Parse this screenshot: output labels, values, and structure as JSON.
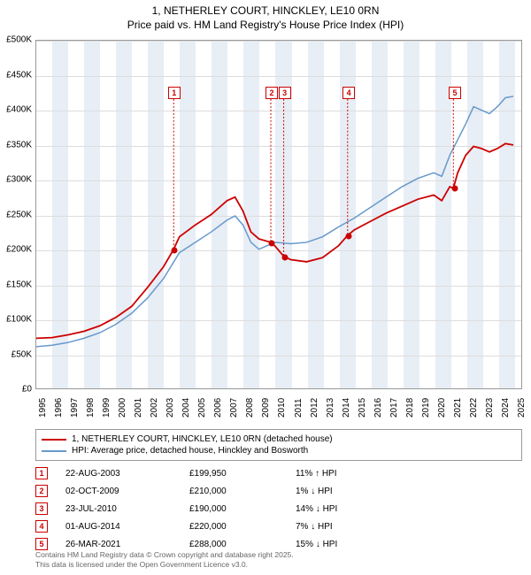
{
  "title": "1, NETHERLEY COURT, HINCKLEY, LE10 0RN",
  "subtitle": "Price paid vs. HM Land Registry's House Price Index (HPI)",
  "chart": {
    "type": "line",
    "xlim": [
      1995,
      2025.5
    ],
    "ylim": [
      0,
      500000
    ],
    "ytick_step": 50000,
    "yticks": [
      "£0",
      "£50K",
      "£100K",
      "£150K",
      "£200K",
      "£250K",
      "£300K",
      "£350K",
      "£400K",
      "£450K",
      "£500K"
    ],
    "xticks": [
      1995,
      1996,
      1997,
      1998,
      1999,
      2000,
      2001,
      2002,
      2003,
      2004,
      2005,
      2006,
      2007,
      2008,
      2009,
      2010,
      2011,
      2012,
      2013,
      2014,
      2015,
      2016,
      2017,
      2018,
      2019,
      2020,
      2021,
      2022,
      2023,
      2024,
      2025
    ],
    "background_color": "#ffffff",
    "band_color": "#e8eef5",
    "grid_color": "#dddddd",
    "series": [
      {
        "name": "property",
        "color": "#cc0000",
        "width": 1.8,
        "label": "1, NETHERLEY COURT, HINCKLEY, LE10 0RN (detached house)",
        "points": [
          [
            1995,
            72000
          ],
          [
            1996,
            73000
          ],
          [
            1997,
            77000
          ],
          [
            1998,
            82000
          ],
          [
            1999,
            90000
          ],
          [
            2000,
            102000
          ],
          [
            2001,
            118000
          ],
          [
            2002,
            145000
          ],
          [
            2003,
            175000
          ],
          [
            2003.64,
            199950
          ],
          [
            2004,
            218000
          ],
          [
            2005,
            235000
          ],
          [
            2006,
            250000
          ],
          [
            2007,
            270000
          ],
          [
            2007.5,
            275000
          ],
          [
            2008,
            255000
          ],
          [
            2008.5,
            225000
          ],
          [
            2009,
            215000
          ],
          [
            2009.75,
            210000
          ],
          [
            2010,
            205000
          ],
          [
            2010.56,
            190000
          ],
          [
            2011,
            185000
          ],
          [
            2012,
            182000
          ],
          [
            2013,
            188000
          ],
          [
            2014,
            205000
          ],
          [
            2014.58,
            220000
          ],
          [
            2015,
            228000
          ],
          [
            2016,
            240000
          ],
          [
            2017,
            252000
          ],
          [
            2018,
            262000
          ],
          [
            2019,
            272000
          ],
          [
            2020,
            278000
          ],
          [
            2020.5,
            270000
          ],
          [
            2021,
            290000
          ],
          [
            2021.23,
            288000
          ],
          [
            2021.5,
            310000
          ],
          [
            2022,
            335000
          ],
          [
            2022.5,
            348000
          ],
          [
            2023,
            345000
          ],
          [
            2023.5,
            340000
          ],
          [
            2024,
            345000
          ],
          [
            2024.5,
            352000
          ],
          [
            2025,
            350000
          ]
        ]
      },
      {
        "name": "hpi",
        "color": "#6699cc",
        "width": 1.5,
        "label": "HPI: Average price, detached house, Hinckley and Bosworth",
        "points": [
          [
            1995,
            60000
          ],
          [
            1996,
            62000
          ],
          [
            1997,
            66000
          ],
          [
            1998,
            72000
          ],
          [
            1999,
            80000
          ],
          [
            2000,
            92000
          ],
          [
            2001,
            108000
          ],
          [
            2002,
            130000
          ],
          [
            2003,
            158000
          ],
          [
            2004,
            195000
          ],
          [
            2005,
            210000
          ],
          [
            2006,
            225000
          ],
          [
            2007,
            242000
          ],
          [
            2007.5,
            248000
          ],
          [
            2008,
            235000
          ],
          [
            2008.5,
            210000
          ],
          [
            2009,
            200000
          ],
          [
            2010,
            210000
          ],
          [
            2011,
            208000
          ],
          [
            2012,
            210000
          ],
          [
            2013,
            218000
          ],
          [
            2014,
            232000
          ],
          [
            2015,
            245000
          ],
          [
            2016,
            260000
          ],
          [
            2017,
            275000
          ],
          [
            2018,
            290000
          ],
          [
            2019,
            302000
          ],
          [
            2020,
            310000
          ],
          [
            2020.5,
            305000
          ],
          [
            2021,
            335000
          ],
          [
            2022,
            380000
          ],
          [
            2022.5,
            405000
          ],
          [
            2023,
            400000
          ],
          [
            2023.5,
            395000
          ],
          [
            2024,
            405000
          ],
          [
            2024.5,
            418000
          ],
          [
            2025,
            420000
          ]
        ]
      }
    ],
    "markers": [
      {
        "n": 1,
        "year": 2003.64,
        "price": 199950,
        "box_y": 425000
      },
      {
        "n": 2,
        "year": 2009.75,
        "price": 210000,
        "box_y": 425000
      },
      {
        "n": 3,
        "year": 2010.56,
        "price": 190000,
        "box_y": 425000
      },
      {
        "n": 4,
        "year": 2014.58,
        "price": 220000,
        "box_y": 425000
      },
      {
        "n": 5,
        "year": 2021.23,
        "price": 288000,
        "box_y": 425000
      }
    ]
  },
  "transactions": [
    {
      "n": 1,
      "date": "22-AUG-2003",
      "price": "£199,950",
      "diff": "11% ↑ HPI"
    },
    {
      "n": 2,
      "date": "02-OCT-2009",
      "price": "£210,000",
      "diff": "1% ↓ HPI"
    },
    {
      "n": 3,
      "date": "23-JUL-2010",
      "price": "£190,000",
      "diff": "14% ↓ HPI"
    },
    {
      "n": 4,
      "date": "01-AUG-2014",
      "price": "£220,000",
      "diff": "7% ↓ HPI"
    },
    {
      "n": 5,
      "date": "26-MAR-2021",
      "price": "£288,000",
      "diff": "15% ↓ HPI"
    }
  ],
  "footer1": "Contains HM Land Registry data © Crown copyright and database right 2025.",
  "footer2": "This data is licensed under the Open Government Licence v3.0."
}
